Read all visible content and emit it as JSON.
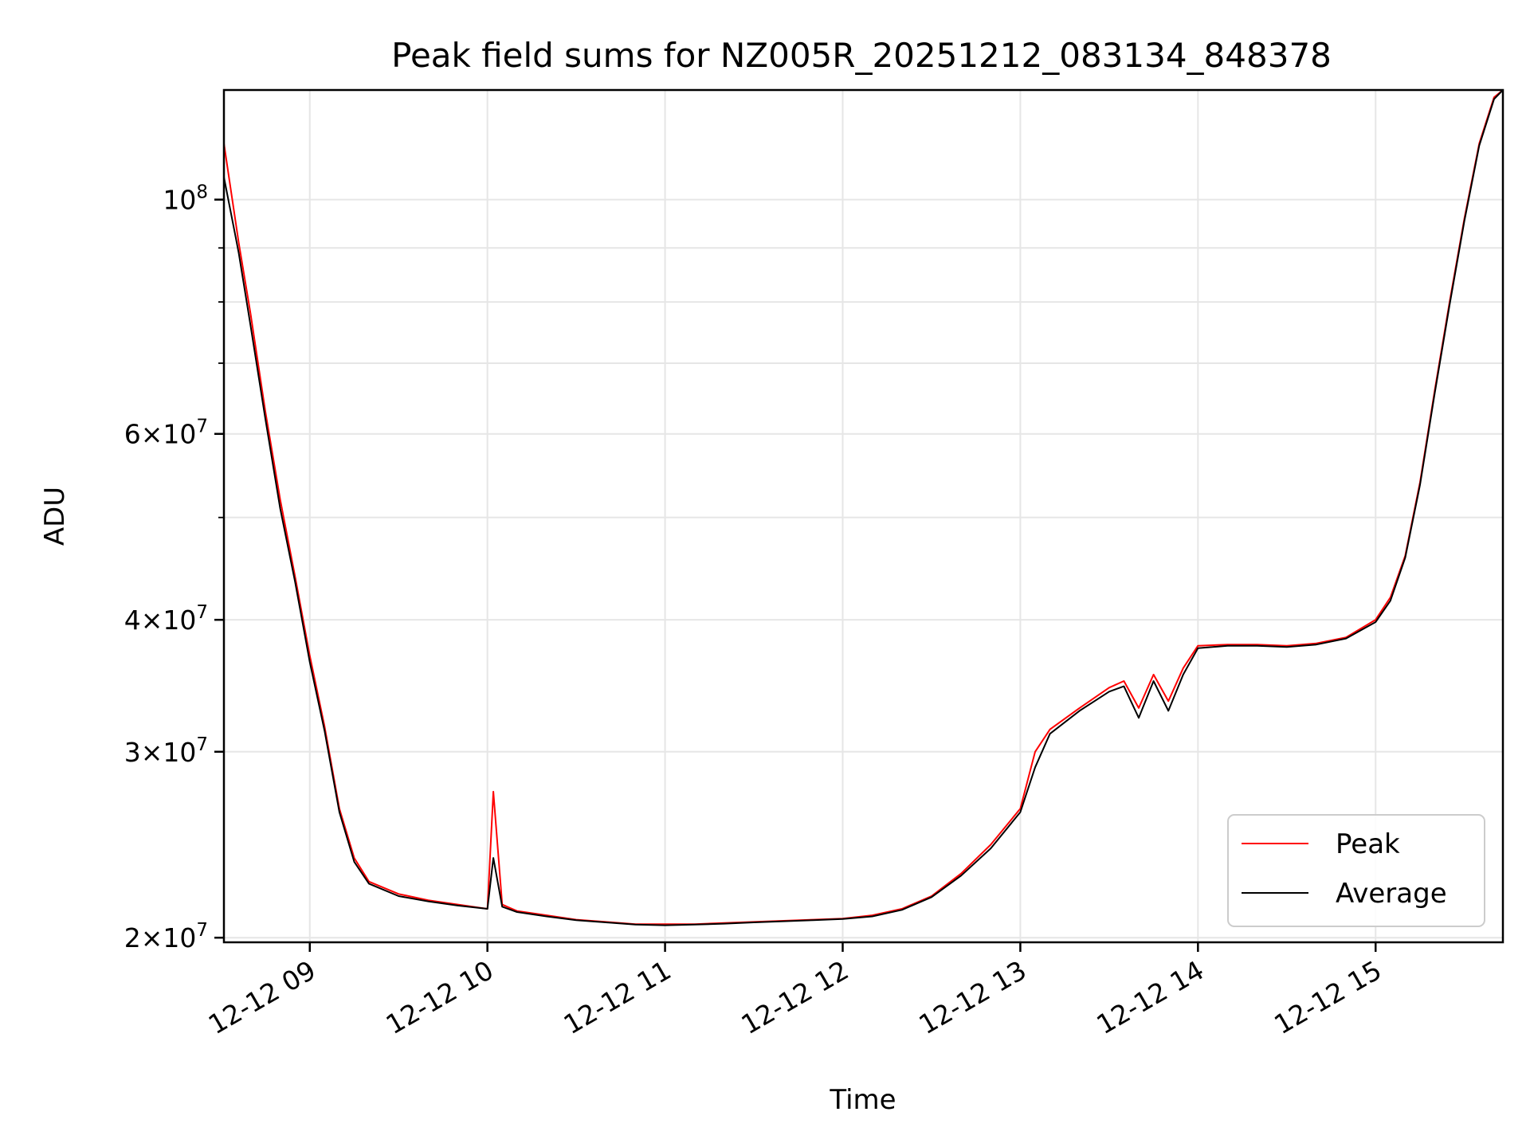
{
  "chart_data": {
    "type": "line",
    "title": "Peak field sums for NZ005R_20251212_083134_848378",
    "xlabel": "Time",
    "ylabel": "ADU",
    "yscale": "log",
    "ylim": [
      19800000,
      127000000
    ],
    "xlim": [
      "12-12 08:31",
      "12-12 15:43"
    ],
    "grid": true,
    "legend_position": "lower-right",
    "x_ticks": [
      "12-12 09",
      "12-12 10",
      "12-12 11",
      "12-12 12",
      "12-12 13",
      "12-12 14",
      "12-12 15"
    ],
    "y_ticks": [
      {
        "value": 100000000,
        "base": "10",
        "exp": "8",
        "mant": ""
      },
      {
        "value": 60000000,
        "base": "10",
        "exp": "7",
        "mant": "6"
      },
      {
        "value": 40000000,
        "base": "10",
        "exp": "7",
        "mant": "4"
      },
      {
        "value": 30000000,
        "base": "10",
        "exp": "7",
        "mant": "3"
      },
      {
        "value": 20000000,
        "base": "10",
        "exp": "7",
        "mant": "2"
      }
    ],
    "y_minor_ticks": [
      90000000,
      80000000,
      70000000,
      50000000
    ],
    "x": [
      "12-12 08:31",
      "12-12 08:35",
      "12-12 08:36",
      "12-12 08:40",
      "12-12 08:45",
      "12-12 08:50",
      "12-12 08:55",
      "12-12 09:00",
      "12-12 09:05",
      "12-12 09:10",
      "12-12 09:15",
      "12-12 09:20",
      "12-12 09:30",
      "12-12 09:40",
      "12-12 09:50",
      "12-12 10:00",
      "12-12 10:02",
      "12-12 10:05",
      "12-12 10:10",
      "12-12 10:20",
      "12-12 10:30",
      "12-12 10:40",
      "12-12 10:50",
      "12-12 11:00",
      "12-12 11:10",
      "12-12 11:20",
      "12-12 11:30",
      "12-12 11:40",
      "12-12 11:50",
      "12-12 12:00",
      "12-12 12:10",
      "12-12 12:20",
      "12-12 12:30",
      "12-12 12:40",
      "12-12 12:50",
      "12-12 13:00",
      "12-12 13:05",
      "12-12 13:10",
      "12-12 13:20",
      "12-12 13:30",
      "12-12 13:35",
      "12-12 13:40",
      "12-12 13:45",
      "12-12 13:50",
      "12-12 13:55",
      "12-12 14:00",
      "12-12 14:10",
      "12-12 14:20",
      "12-12 14:30",
      "12-12 14:40",
      "12-12 14:50",
      "12-12 15:00",
      "12-12 15:05",
      "12-12 15:10",
      "12-12 15:15",
      "12-12 15:20",
      "12-12 15:25",
      "12-12 15:30",
      "12-12 15:35",
      "12-12 15:40",
      "12-12 15:43"
    ],
    "series": [
      {
        "name": "Peak",
        "color": "#ff0000",
        "values": [
          113000000,
          95000000,
          91000000,
          78000000,
          63000000,
          52000000,
          44000000,
          37000000,
          31700000,
          26500000,
          23800000,
          22600000,
          22000000,
          21700000,
          21500000,
          21300000,
          27500000,
          21500000,
          21200000,
          21000000,
          20800000,
          20700000,
          20600000,
          20600000,
          20600000,
          20650000,
          20700000,
          20750000,
          20800000,
          20850000,
          21000000,
          21300000,
          21900000,
          23000000,
          24500000,
          26500000,
          30000000,
          31500000,
          33000000,
          34500000,
          35000000,
          33000000,
          35500000,
          33500000,
          36000000,
          37800000,
          37900000,
          37900000,
          37800000,
          38000000,
          38500000,
          40000000,
          42000000,
          46000000,
          54000000,
          66000000,
          80000000,
          96000000,
          113000000,
          125000000,
          127000000
        ]
      },
      {
        "name": "Average",
        "color": "#000000",
        "values": [
          105000000,
          92000000,
          89000000,
          76000000,
          62000000,
          51000000,
          43500000,
          36500000,
          31400000,
          26300000,
          23600000,
          22500000,
          21900000,
          21650000,
          21450000,
          21300000,
          23800000,
          21400000,
          21150000,
          20950000,
          20780000,
          20680000,
          20580000,
          20550000,
          20580000,
          20620000,
          20680000,
          20730000,
          20780000,
          20830000,
          20950000,
          21250000,
          21850000,
          22900000,
          24300000,
          26300000,
          29000000,
          31200000,
          32800000,
          34200000,
          34600000,
          32300000,
          35000000,
          32800000,
          35500000,
          37600000,
          37800000,
          37800000,
          37700000,
          37900000,
          38400000,
          39800000,
          41700000,
          45800000,
          53700000,
          65600000,
          79500000,
          95500000,
          112500000,
          124500000,
          127000000
        ]
      }
    ]
  }
}
